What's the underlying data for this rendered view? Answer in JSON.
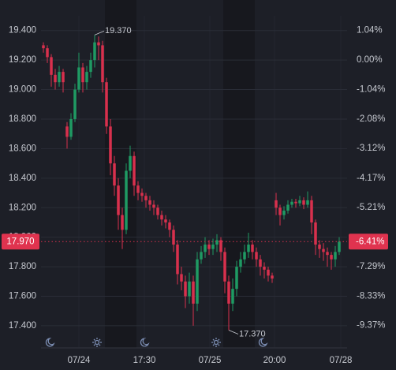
{
  "chart_data": {
    "type": "candlestick",
    "up_color": "#1f9a63",
    "down_color": "#d8304d",
    "open": [
      19.3,
      19.28,
      19.22,
      19.1,
      19.05,
      19.12,
      18.75,
      18.68,
      18.8,
      19.0,
      19.15,
      19.05,
      19.12,
      19.2,
      19.32,
      19.3,
      19.05,
      18.75,
      18.5,
      18.35,
      18.15,
      18.05,
      18.45,
      18.55,
      18.35,
      18.3,
      18.28,
      18.25,
      18.22,
      18.2,
      18.15,
      18.12,
      18.1,
      18.05,
      17.95,
      17.75,
      17.7,
      17.6,
      17.7,
      17.55,
      17.85,
      17.9,
      17.95,
      17.92,
      17.95,
      17.98,
      17.9,
      17.7,
      17.55,
      17.65,
      17.8,
      17.85,
      17.9,
      17.95,
      17.9,
      17.85,
      17.8,
      17.78,
      17.74,
      18.25,
      18.2,
      18.15,
      18.18,
      18.22,
      18.24,
      18.23,
      18.25,
      18.22,
      18.25,
      18.1,
      17.95,
      17.92,
      17.9,
      17.88,
      17.85,
      17.9
    ],
    "high": [
      19.32,
      19.3,
      19.24,
      19.14,
      19.16,
      19.14,
      18.78,
      18.84,
      19.04,
      19.25,
      19.18,
      19.16,
      19.25,
      19.37,
      19.36,
      19.33,
      19.08,
      18.8,
      18.55,
      18.4,
      18.2,
      18.5,
      18.62,
      18.58,
      18.38,
      18.33,
      18.3,
      18.28,
      18.25,
      18.22,
      18.18,
      18.15,
      18.12,
      18.08,
      17.98,
      17.8,
      17.74,
      17.76,
      17.74,
      17.9,
      17.94,
      18.0,
      17.98,
      17.99,
      18.02,
      18.0,
      17.93,
      17.74,
      17.72,
      17.84,
      17.9,
      17.95,
      18.03,
      17.98,
      17.93,
      17.88,
      17.83,
      17.8,
      17.76,
      18.3,
      18.22,
      18.21,
      18.25,
      18.26,
      18.26,
      18.28,
      18.27,
      18.31,
      18.28,
      18.12,
      17.98,
      17.96,
      17.93,
      17.9,
      17.94,
      18.0
    ],
    "low": [
      19.25,
      19.18,
      19.02,
      19.0,
      19.02,
      18.98,
      18.6,
      18.66,
      18.78,
      18.98,
      18.98,
      19.0,
      19.08,
      19.15,
      19.2,
      18.98,
      18.7,
      18.42,
      18.28,
      18.05,
      17.92,
      18.02,
      18.4,
      18.28,
      18.25,
      18.24,
      18.2,
      18.18,
      18.15,
      18.12,
      18.08,
      18.06,
      18.0,
      17.9,
      17.68,
      17.64,
      17.52,
      17.55,
      17.4,
      17.5,
      17.82,
      17.86,
      17.88,
      17.88,
      17.9,
      17.84,
      17.62,
      17.37,
      17.5,
      17.6,
      17.76,
      17.82,
      17.86,
      17.85,
      17.8,
      17.74,
      17.72,
      17.7,
      17.69,
      18.15,
      18.08,
      18.12,
      18.16,
      18.2,
      18.2,
      18.21,
      18.19,
      18.2,
      18.02,
      17.88,
      17.86,
      17.84,
      17.8,
      17.78,
      17.8,
      17.88
    ],
    "close": [
      19.28,
      19.22,
      19.1,
      19.05,
      19.12,
      19.05,
      18.68,
      18.8,
      19.0,
      19.15,
      19.05,
      19.12,
      19.2,
      19.32,
      19.3,
      19.05,
      18.75,
      18.5,
      18.35,
      18.15,
      18.05,
      18.45,
      18.55,
      18.35,
      18.3,
      18.28,
      18.25,
      18.22,
      18.2,
      18.15,
      18.12,
      18.1,
      18.05,
      17.95,
      17.75,
      17.7,
      17.6,
      17.7,
      17.55,
      17.85,
      17.9,
      17.95,
      17.92,
      17.95,
      17.98,
      17.9,
      17.7,
      17.55,
      17.65,
      17.8,
      17.85,
      17.9,
      17.95,
      17.9,
      17.85,
      17.8,
      17.78,
      17.74,
      17.72,
      18.2,
      18.15,
      18.18,
      18.22,
      18.24,
      18.23,
      18.25,
      18.22,
      18.25,
      18.1,
      17.95,
      17.92,
      17.9,
      17.88,
      17.85,
      17.9,
      17.97
    ],
    "xlim": [
      -0.6,
      77
    ],
    "xticks": [
      {
        "value": 9,
        "label": "07/24"
      },
      {
        "value": 25.6,
        "label": "17:30"
      },
      {
        "value": 42.2,
        "label": "07/25"
      },
      {
        "value": 58.6,
        "label": "20:00"
      },
      {
        "value": 75.4,
        "label": "07/28"
      }
    ],
    "ylim": [
      17.25,
      19.5
    ],
    "yticks": [
      {
        "value": 19.4,
        "label": "19.400"
      },
      {
        "value": 19.2,
        "label": "19.200"
      },
      {
        "value": 19.0,
        "label": "19.000"
      },
      {
        "value": 18.8,
        "label": "18.800"
      },
      {
        "value": 18.6,
        "label": "18.600"
      },
      {
        "value": 18.4,
        "label": "18.400"
      },
      {
        "value": 18.2,
        "label": "18.200"
      },
      {
        "value": 18.0,
        "label": "18.000"
      },
      {
        "value": 17.8,
        "label": "17.800"
      },
      {
        "value": 17.6,
        "label": "17.600"
      },
      {
        "value": 17.4,
        "label": "17.400"
      }
    ],
    "y2lim": [
      -10.16,
      1.56
    ],
    "y2ticks": [
      {
        "value": 1.04,
        "label": "1.04%"
      },
      {
        "value": 0,
        "label": "0.00%"
      },
      {
        "value": -1.04,
        "label": "-1.04%"
      },
      {
        "value": -2.08,
        "label": "-2.08%"
      },
      {
        "value": -3.12,
        "label": "-3.12%"
      },
      {
        "value": -4.17,
        "label": "-4.17%"
      },
      {
        "value": -5.21,
        "label": "-5.21%"
      },
      {
        "value": -7.29,
        "label": "-7.29%"
      },
      {
        "value": -8.33,
        "label": "-8.33%"
      },
      {
        "value": -9.37,
        "label": "-9.37%"
      }
    ],
    "grid": true,
    "last_price": {
      "value": 17.97,
      "label": "17.970"
    },
    "last_change": {
      "value": -6.41,
      "label": "-6.41%"
    },
    "high_marker": {
      "index": 13,
      "value": 19.37,
      "label": "19.370"
    },
    "low_marker": {
      "index": 47,
      "value": 17.37,
      "label": "17.370"
    }
  }
}
